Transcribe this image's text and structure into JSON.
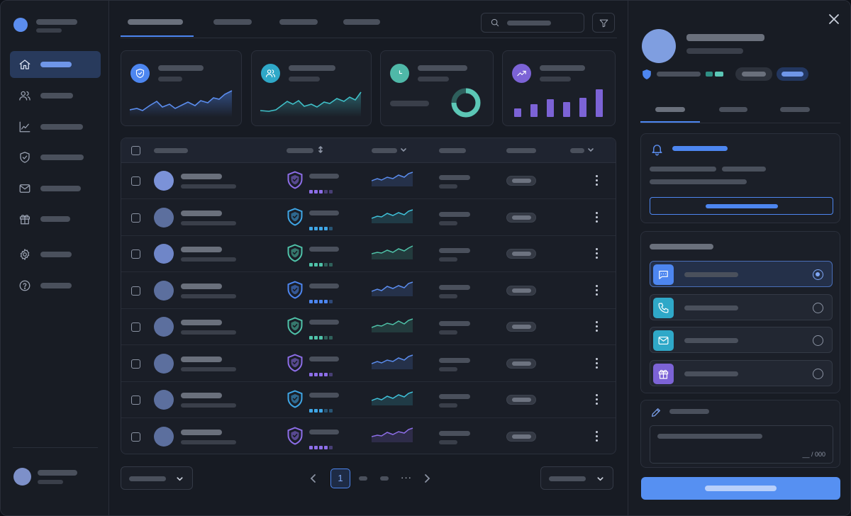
{
  "sidebar": {
    "items": [
      {
        "id": "home",
        "icon": "home-icon",
        "active": true
      },
      {
        "id": "users",
        "icon": "users-icon",
        "active": false
      },
      {
        "id": "analytics",
        "icon": "chart-line-icon",
        "active": false
      },
      {
        "id": "security",
        "icon": "shield-check-icon",
        "active": false
      },
      {
        "id": "mail",
        "icon": "mail-icon",
        "active": false
      },
      {
        "id": "rewards",
        "icon": "gift-icon",
        "active": false
      },
      {
        "id": "settings",
        "icon": "gear-icon",
        "active": false
      },
      {
        "id": "help",
        "icon": "help-circle-icon",
        "active": false
      }
    ]
  },
  "stat_cards": [
    {
      "icon": "shield-check-icon",
      "color": "#4d86f0"
    },
    {
      "icon": "users-icon",
      "color": "#2fa8c8"
    },
    {
      "icon": "clock-icon",
      "color": "#4fb8a8"
    },
    {
      "icon": "trending-up-icon",
      "color": "#7c63d6"
    }
  ],
  "pagination": {
    "current_page": "1",
    "ellipsis": "···"
  },
  "table": {
    "rows": [
      {
        "shield_color": "#8d6ee8",
        "trend_color": "#5b8def"
      },
      {
        "shield_color": "#3fa6e6",
        "trend_color": "#3fc0d8"
      },
      {
        "shield_color": "#4fc2a8",
        "trend_color": "#4fc2a8"
      },
      {
        "shield_color": "#4d86f0",
        "trend_color": "#5b8def"
      },
      {
        "shield_color": "#4fc2a8",
        "trend_color": "#4fc2a8"
      },
      {
        "shield_color": "#8d6ee8",
        "trend_color": "#5b8def"
      },
      {
        "shield_color": "#3fa6e6",
        "trend_color": "#3fc0d8"
      },
      {
        "shield_color": "#8d6ee8",
        "trend_color": "#8d6ee8"
      }
    ]
  },
  "panel": {
    "contact_options": [
      {
        "icon": "chat-icon",
        "color": "#4d86f0",
        "selected": true
      },
      {
        "icon": "phone-icon",
        "color": "#2fa8c8",
        "selected": false
      },
      {
        "icon": "mail-icon",
        "color": "#2fa8c8",
        "selected": false
      },
      {
        "icon": "gift-icon",
        "color": "#7c63d6",
        "selected": false
      }
    ],
    "note_counter": "__ / 000"
  },
  "colors": {
    "accent": "#4d86f0",
    "background": "#161a22"
  }
}
